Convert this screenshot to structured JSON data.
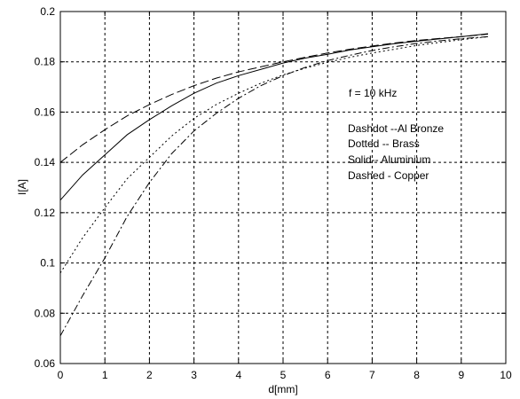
{
  "chart_data": {
    "type": "line",
    "xlabel": "d[mm]",
    "ylabel": "I[A]",
    "xlim": [
      0,
      10
    ],
    "ylim": [
      0.06,
      0.2
    ],
    "x_ticks": [
      0,
      1,
      2,
      3,
      4,
      5,
      6,
      7,
      8,
      9,
      10
    ],
    "y_ticks": [
      0.06,
      0.08,
      0.1,
      0.12,
      0.14,
      0.16,
      0.18,
      0.2
    ],
    "x_tick_labels": [
      "0",
      "1",
      "2",
      "3",
      "4",
      "5",
      "6",
      "7",
      "8",
      "9",
      "10"
    ],
    "y_tick_labels": [
      "0.06",
      "0.08",
      "0.1",
      "0.12",
      "0.14",
      "0.16",
      "0.18",
      "0.2"
    ],
    "grid": true,
    "annotations": [
      "f = 10 kHz",
      "Dashdot --Al Bronze",
      "Dotted -- Brass",
      "Solid-- Aluminium",
      "Dashed -  Copper"
    ],
    "series": [
      {
        "style": "dashed",
        "x": [
          0,
          0.5,
          1,
          1.5,
          2,
          2.5,
          3,
          3.5,
          4,
          4.5,
          5,
          5.5,
          6,
          6.5,
          7,
          7.5,
          8,
          8.5,
          9,
          9.6
        ],
        "y": [
          0.14,
          0.147,
          0.153,
          0.1585,
          0.163,
          0.167,
          0.1705,
          0.1735,
          0.176,
          0.178,
          0.18,
          0.1818,
          0.1835,
          0.185,
          0.1863,
          0.1875,
          0.1885,
          0.1893,
          0.19,
          0.191
        ]
      },
      {
        "style": "solid",
        "x": [
          0,
          0.5,
          1,
          1.5,
          2,
          2.5,
          3,
          3.5,
          4,
          4.5,
          5,
          5.5,
          6,
          6.5,
          7,
          7.5,
          8,
          8.5,
          9,
          9.6
        ],
        "y": [
          0.125,
          0.135,
          0.143,
          0.151,
          0.157,
          0.1625,
          0.1675,
          0.1715,
          0.1745,
          0.177,
          0.1795,
          0.1815,
          0.183,
          0.1847,
          0.186,
          0.1872,
          0.1882,
          0.1891,
          0.19,
          0.1912
        ]
      },
      {
        "style": "dotted",
        "x": [
          0,
          0.5,
          1,
          1.5,
          2,
          2.5,
          3,
          3.5,
          4,
          4.5,
          5,
          5.5,
          6,
          6.5,
          7,
          7.5,
          8,
          8.5,
          9,
          9.6
        ],
        "y": [
          0.096,
          0.11,
          0.122,
          0.1335,
          0.142,
          0.1505,
          0.1575,
          0.163,
          0.1675,
          0.1715,
          0.1748,
          0.1775,
          0.1798,
          0.1818,
          0.1835,
          0.185,
          0.1865,
          0.1877,
          0.1888,
          0.19
        ]
      },
      {
        "style": "dashdot",
        "x": [
          0,
          0.5,
          1,
          1.5,
          2,
          2.5,
          3,
          3.5,
          4,
          4.5,
          5,
          5.5,
          6,
          6.5,
          7,
          7.5,
          8,
          8.5,
          9,
          9.6
        ],
        "y": [
          0.071,
          0.087,
          0.102,
          0.1185,
          0.132,
          0.1435,
          0.1525,
          0.1595,
          0.1655,
          0.1705,
          0.1745,
          0.1778,
          0.1805,
          0.1826,
          0.1845,
          0.186,
          0.1873,
          0.1883,
          0.1892,
          0.19
        ]
      }
    ]
  }
}
